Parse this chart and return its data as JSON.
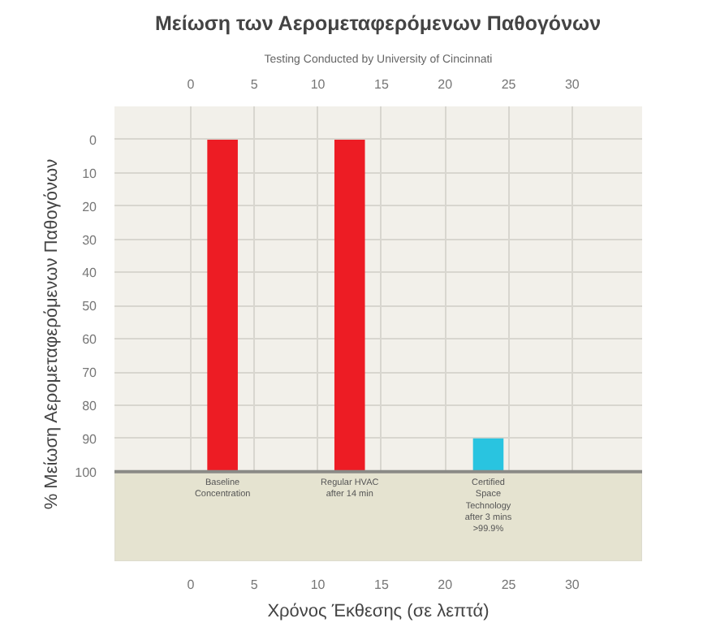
{
  "chart_data": {
    "type": "bar",
    "title": "Μείωση των Αερομεταφερόμενων Παθογόνων",
    "subtitle": "Testing Conducted by University of Cincinnati",
    "xlabel": "Χρόνος Έκθεσης (σε λεπτά)",
    "ylabel": "% Μείωση Αερομεταφερόμενων Παθογόνων",
    "x": [
      2.5,
      12.5,
      23.4
    ],
    "base": [
      100,
      100,
      100
    ],
    "values": [
      -100,
      -100,
      -10
    ],
    "colors": [
      "#ed1c24",
      "#ed1c24",
      "#29c4e0"
    ],
    "xlim": [
      -6,
      35.5
    ],
    "xticks": [
      0,
      5,
      10,
      15,
      20,
      25,
      30
    ],
    "x2lim": [
      -6,
      35.5
    ],
    "x2ticks": [
      0,
      5,
      10,
      15,
      20,
      25,
      30
    ],
    "ylim": [
      127,
      -10
    ],
    "yticks": [
      0,
      10,
      20,
      30,
      40,
      50,
      60,
      70,
      80,
      90,
      100
    ],
    "grid": true,
    "ref_lines": [
      {
        "axis": "y",
        "value": 100,
        "color": "#8a8a86"
      }
    ],
    "bands": [
      {
        "axis": "y",
        "from": 100,
        "to": 127,
        "color": "#e5e3d0"
      }
    ],
    "annotations": [
      "Baseline Concentration",
      "Regular HVAC after 14 min",
      "Certified Space Technology after 3 mins >99.9%"
    ]
  }
}
